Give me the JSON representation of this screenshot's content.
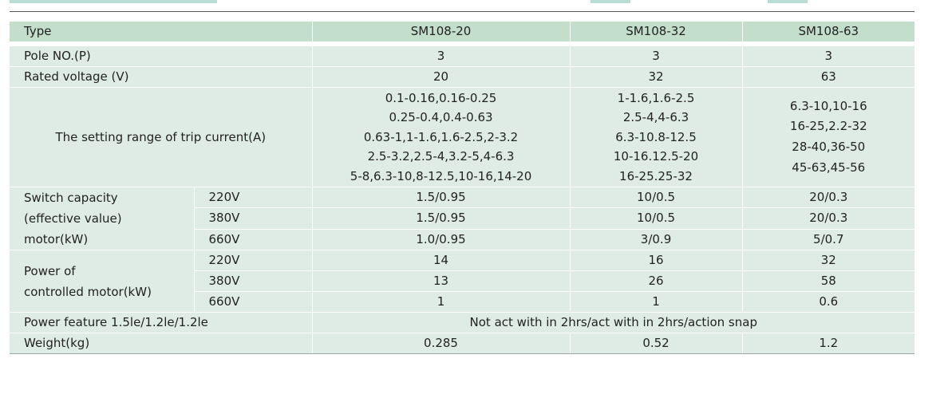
{
  "table": {
    "header": {
      "type": "Type",
      "col1": "SM108-20",
      "col2": "SM108-32",
      "col3": "SM108-63"
    },
    "pole": {
      "label": "Pole NO.(P)",
      "v1": "3",
      "v2": "3",
      "v3": "3"
    },
    "voltage": {
      "label": "Rated voltage (V)",
      "v1": "20",
      "v2": "32",
      "v3": "63"
    },
    "trip": {
      "label": "The setting range of trip current(A)",
      "col1": [
        "0.1-0.16,0.16-0.25",
        "0.25-0.4,0.4-0.63",
        "0.63-1,1-1.6,1.6-2.5,2-3.2",
        "2.5-3.2,2.5-4,3.2-5,4-6.3",
        "5-8,6.3-10,8-12.5,10-16,14-20"
      ],
      "col2": [
        "1-1.6,1.6-2.5",
        "2.5-4,4-6.3",
        "6.3-10.8-12.5",
        "10-16.12.5-20",
        "16-25.25-32"
      ],
      "col3": [
        "6.3-10,10-16",
        "16-25,2.2-32",
        "28-40,36-50",
        "45-63,45-56"
      ]
    },
    "switch": {
      "label_lines": [
        "Switch capacity",
        "(effective value)",
        "motor(kW)"
      ],
      "rows": [
        {
          "volt": "220V",
          "v1": "1.5/0.95",
          "v2": "10/0.5",
          "v3": "20/0.3"
        },
        {
          "volt": "380V",
          "v1": "1.5/0.95",
          "v2": "10/0.5",
          "v3": "20/0.3"
        },
        {
          "volt": "660V",
          "v1": "1.0/0.95",
          "v2": "3/0.9",
          "v3": "5/0.7"
        }
      ]
    },
    "power": {
      "label_lines": [
        "Power of",
        "controlled motor(kW)"
      ],
      "rows": [
        {
          "volt": "220V",
          "v1": "14",
          "v2": "16",
          "v3": "32"
        },
        {
          "volt": "380V",
          "v1": "13",
          "v2": "26",
          "v3": "58"
        },
        {
          "volt": "660V",
          "v1": "1",
          "v2": "1",
          "v3": "0.6"
        }
      ]
    },
    "feature": {
      "label": "Power feature 1.5le/1.2le/1.2le",
      "value": "Not act with in 2hrs/act with in 2hrs/action snap"
    },
    "weight": {
      "label": "Weight(kg)",
      "v1": "0.285",
      "v2": "0.52",
      "v3": "1.2"
    }
  },
  "colors": {
    "header_bg": "#c3dfcb",
    "cell_bg": "#dfece6",
    "text": "#222222"
  }
}
